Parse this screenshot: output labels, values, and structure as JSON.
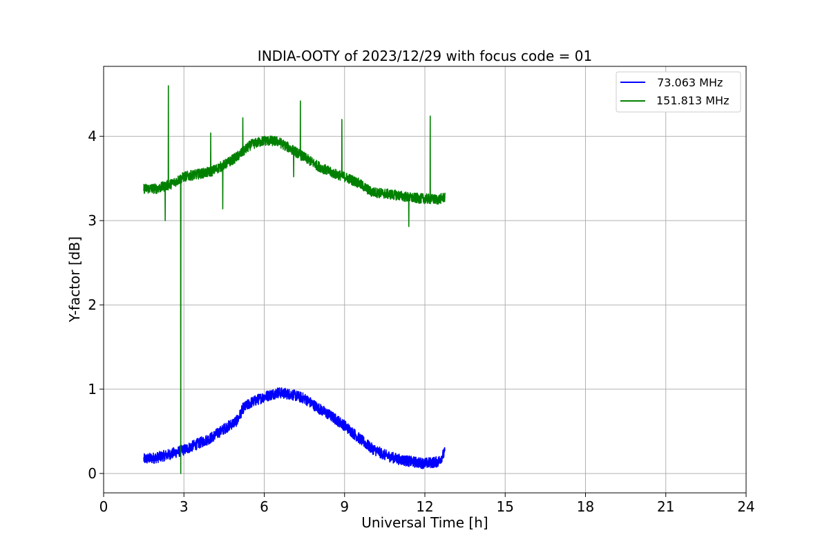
{
  "chart_data": {
    "type": "line",
    "title": "INDIA-OOTY of 2023/12/29 with focus code = 01",
    "xlabel": "Universal Time [h]",
    "ylabel": "Y-factor [dB]",
    "xlim": [
      0,
      24
    ],
    "ylim": [
      -0.23,
      4.83
    ],
    "xticks": [
      0,
      3,
      6,
      9,
      12,
      15,
      18,
      21,
      24
    ],
    "yticks": [
      0,
      1,
      2,
      3,
      4
    ],
    "grid": true,
    "legend_position": "top-right",
    "series": [
      {
        "name": " 73.063 MHz",
        "color": "#0000ff",
        "x": [
          1.5,
          2.0,
          2.5,
          3.0,
          3.5,
          4.0,
          4.5,
          5.0,
          5.2,
          5.5,
          6.0,
          6.5,
          7.0,
          7.5,
          8.0,
          8.5,
          9.0,
          9.5,
          10.0,
          10.5,
          11.0,
          11.5,
          12.0,
          12.5,
          12.75
        ],
        "y": [
          0.17,
          0.19,
          0.23,
          0.28,
          0.35,
          0.42,
          0.53,
          0.63,
          0.77,
          0.84,
          0.91,
          0.96,
          0.94,
          0.89,
          0.78,
          0.68,
          0.57,
          0.43,
          0.3,
          0.22,
          0.17,
          0.14,
          0.12,
          0.14,
          0.25
        ],
        "noise": 0.065
      },
      {
        "name": "151.813 MHz",
        "color": "#008000",
        "x": [
          1.5,
          2.0,
          2.5,
          3.0,
          3.5,
          4.0,
          4.5,
          5.0,
          5.5,
          6.0,
          6.5,
          7.0,
          7.5,
          8.0,
          8.5,
          9.0,
          9.5,
          10.0,
          10.5,
          11.0,
          11.5,
          12.0,
          12.5,
          12.75
        ],
        "y": [
          3.38,
          3.38,
          3.43,
          3.52,
          3.55,
          3.58,
          3.66,
          3.76,
          3.9,
          3.95,
          3.94,
          3.85,
          3.75,
          3.65,
          3.57,
          3.52,
          3.45,
          3.34,
          3.32,
          3.3,
          3.27,
          3.26,
          3.25,
          3.28
        ],
        "noise": 0.06,
        "spikes": [
          {
            "x": 2.3,
            "y": 3.9
          },
          {
            "x": 2.3,
            "y": 3.0
          },
          {
            "x": 2.42,
            "y": 4.6
          },
          {
            "x": 2.88,
            "y": 0.0
          },
          {
            "x": 4.0,
            "y": 4.04
          },
          {
            "x": 4.45,
            "y": 3.14
          },
          {
            "x": 5.2,
            "y": 4.22
          },
          {
            "x": 7.35,
            "y": 4.42
          },
          {
            "x": 7.1,
            "y": 3.52
          },
          {
            "x": 8.9,
            "y": 4.2
          },
          {
            "x": 11.4,
            "y": 2.93
          },
          {
            "x": 12.2,
            "y": 4.24
          }
        ]
      }
    ]
  }
}
